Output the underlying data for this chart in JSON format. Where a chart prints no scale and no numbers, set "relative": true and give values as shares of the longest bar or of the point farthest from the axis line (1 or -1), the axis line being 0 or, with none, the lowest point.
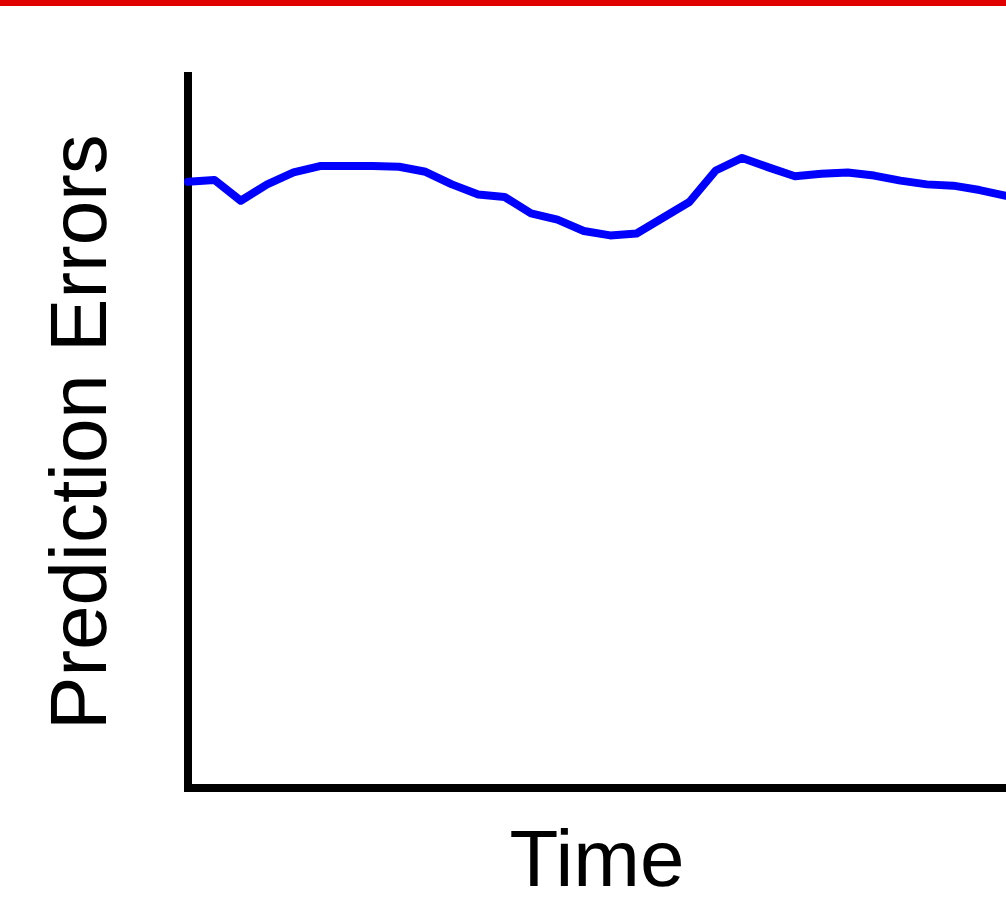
{
  "chart_data": {
    "type": "line",
    "xlabel": "Time",
    "ylabel": "Prediction Errors",
    "relative": true,
    "categories": [
      null,
      null,
      null,
      null,
      null,
      null,
      null,
      null,
      null,
      null,
      null,
      null,
      null,
      null,
      null,
      null,
      null,
      null,
      null,
      null,
      null,
      null,
      null,
      null,
      null,
      null,
      null,
      null,
      null,
      null,
      null,
      null
    ],
    "series": [
      {
        "color": "#0000ff",
        "values": [
          0.962,
          0.965,
          0.932,
          0.958,
          0.977,
          0.987,
          0.987,
          0.987,
          0.986,
          0.978,
          0.958,
          0.942,
          0.938,
          0.912,
          0.902,
          0.884,
          0.877,
          0.88,
          0.905,
          0.93,
          0.98,
          1,
          0.985,
          0.971,
          0.975,
          0.977,
          0.972,
          0.964,
          0.958,
          0.956,
          0.949,
          0.94
        ]
      }
    ],
    "grid": false,
    "legend": false,
    "marker": "none",
    "line_style": "solid"
  }
}
